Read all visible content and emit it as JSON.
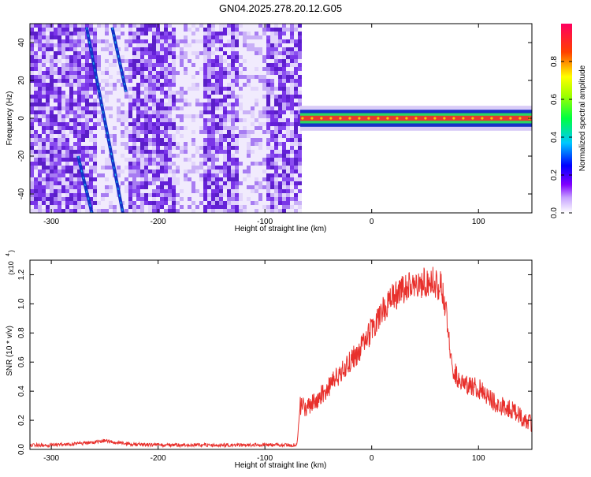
{
  "title": "GN04.2025.278.20.12.G05",
  "colors": {
    "signal": "#e8302c",
    "ribbon": "#e83a2e",
    "track": "#1530c8",
    "noise": "#7a35e8",
    "noise_light": "#d9cdf8"
  },
  "chart_data": [
    {
      "type": "heatmap",
      "name": "spectrogram",
      "xlabel": "Height of straight line (km)",
      "ylabel": "Frequency (Hz)",
      "xlim": [
        -320,
        150
      ],
      "ylim": [
        -50,
        50
      ],
      "xticks": [
        -300,
        -200,
        -100,
        0,
        100
      ],
      "yticks": [
        -40,
        -20,
        0,
        20,
        40
      ],
      "noise_region_x": [
        -320,
        -67
      ],
      "tracks": [
        {
          "x": [
            -267,
            -233
          ],
          "y": [
            48,
            -50
          ]
        },
        {
          "x": [
            -243,
            -230
          ],
          "y": [
            48,
            14
          ]
        },
        {
          "x": [
            -275,
            -262
          ],
          "y": [
            -20,
            -50
          ]
        }
      ],
      "ribbon": {
        "x": [
          -67,
          150
        ],
        "y_center": 0,
        "half_width": 3
      },
      "colorbar": {
        "label": "Normalized spectral amplitude",
        "range": [
          0,
          1
        ],
        "ticks": [
          0.0,
          0.2,
          0.4,
          0.6,
          0.8
        ],
        "tick_labels": [
          "0.0",
          "0.2",
          "0.4",
          "0.6",
          "0.8"
        ]
      }
    },
    {
      "type": "line",
      "name": "snr",
      "xlabel": "Height of straight line (km)",
      "ylabel": "SNR (10 * v/v)",
      "multiplier_label": "(x10",
      "multiplier_exp": "4",
      "xlim": [
        -320,
        150
      ],
      "ylim": [
        0,
        1.3
      ],
      "xticks": [
        -300,
        -200,
        -100,
        0,
        100
      ],
      "yticks": [
        0.0,
        0.2,
        0.4,
        0.6,
        0.8,
        1.0,
        1.2
      ],
      "ytick_labels": [
        "0.0",
        "0.2",
        "0.4",
        "0.6",
        "0.8",
        "1.0",
        "1.2"
      ],
      "series": [
        {
          "x": [
            -320,
            -300,
            -280,
            -260,
            -250,
            -240,
            -220,
            -200,
            -180,
            -160,
            -140,
            -120,
            -100,
            -80,
            -70,
            -67,
            -60,
            -50,
            -40,
            -30,
            -20,
            -10,
            0,
            10,
            20,
            30,
            40,
            50,
            55,
            60,
            65,
            70,
            75,
            80,
            90,
            100,
            110,
            120,
            130,
            140,
            150
          ],
          "y": [
            0.03,
            0.03,
            0.035,
            0.05,
            0.06,
            0.045,
            0.035,
            0.03,
            0.03,
            0.03,
            0.03,
            0.03,
            0.03,
            0.03,
            0.03,
            0.3,
            0.28,
            0.35,
            0.43,
            0.52,
            0.6,
            0.7,
            0.82,
            0.95,
            1.04,
            1.1,
            1.14,
            1.15,
            1.16,
            1.14,
            1.12,
            0.95,
            0.55,
            0.5,
            0.45,
            0.42,
            0.35,
            0.3,
            0.28,
            0.22,
            0.18
          ]
        }
      ]
    }
  ]
}
